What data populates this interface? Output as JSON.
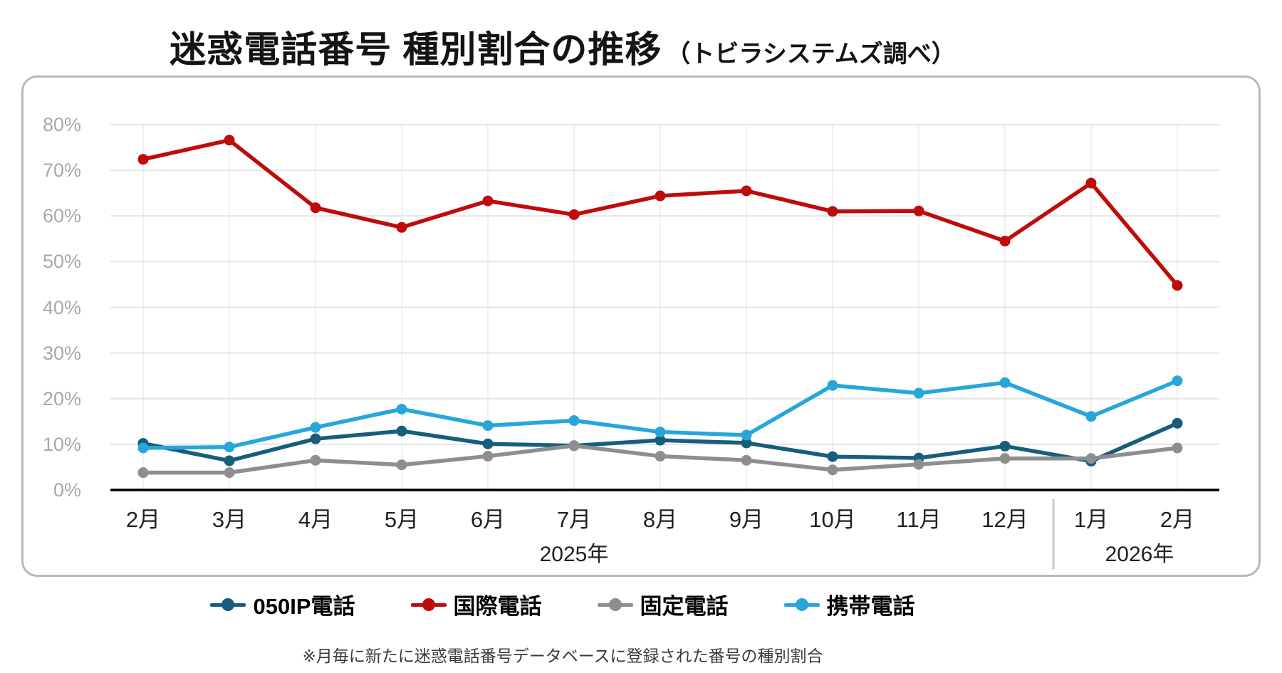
{
  "title": {
    "main": "迷惑電話番号 種別割合の推移",
    "sub": "（トビラシステムズ調べ）"
  },
  "footnote": "※月毎に新たに迷惑電話番号データベースに登録された番号の種別割合",
  "y_axis": {
    "tick_labels": [
      "0%",
      "10%",
      "20%",
      "30%",
      "40%",
      "50%",
      "60%",
      "70%",
      "80%"
    ],
    "min": 0,
    "max": 80
  },
  "x_axis": {
    "months": [
      "2月",
      "3月",
      "4月",
      "5月",
      "6月",
      "7月",
      "8月",
      "9月",
      "10月",
      "11月",
      "12月",
      "1月",
      "2月"
    ],
    "year_groups": [
      {
        "label": "2025年",
        "start": 0,
        "end": 10
      },
      {
        "label": "2026年",
        "start": 11,
        "end": 12
      }
    ]
  },
  "chart_data": {
    "type": "line",
    "categories": [
      "2月",
      "3月",
      "4月",
      "5月",
      "6月",
      "7月",
      "8月",
      "9月",
      "10月",
      "11月",
      "12月",
      "1月",
      "2月"
    ],
    "series": [
      {
        "name": "050IP電話",
        "color": "#175d7c",
        "values": [
          10.2,
          6.4,
          11.2,
          12.9,
          10.1,
          9.7,
          10.9,
          10.3,
          7.3,
          7.0,
          9.6,
          6.3,
          14.6
        ]
      },
      {
        "name": "国際電話",
        "color": "#c00b0b",
        "values": [
          72.4,
          76.6,
          61.8,
          57.5,
          63.3,
          60.3,
          64.4,
          65.5,
          61.0,
          61.1,
          54.5,
          67.2,
          44.8
        ]
      },
      {
        "name": "固定電話",
        "color": "#8e8e8e",
        "values": [
          3.8,
          3.8,
          6.5,
          5.5,
          7.4,
          9.7,
          7.4,
          6.5,
          4.4,
          5.6,
          6.9,
          6.9,
          9.2
        ]
      },
      {
        "name": "携帯電話",
        "color": "#27a6da",
        "values": [
          9.2,
          9.4,
          13.7,
          17.7,
          14.1,
          15.2,
          12.7,
          12.0,
          22.9,
          21.2,
          23.5,
          16.1,
          23.9
        ]
      }
    ],
    "ylim": [
      0,
      80
    ],
    "grid": true,
    "legend_position": "bottom"
  },
  "colors": {
    "grid_line": "#e4e4e4",
    "grid_line_vertical": "#f1f1f1",
    "axis_line": "#000000",
    "year_separator": "#c9c9c9",
    "panel_border": "#b9b9b9",
    "tick_text": "#a8a8a8",
    "label_text": "#212121"
  }
}
